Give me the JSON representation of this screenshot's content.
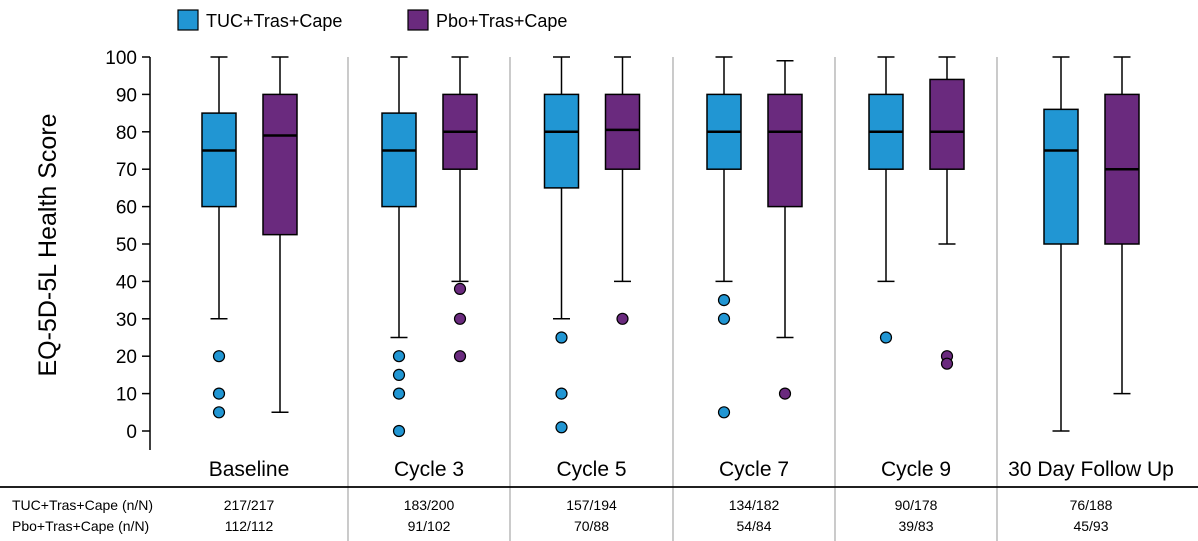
{
  "chart_data": {
    "type": "boxplot",
    "ylabel": "EQ-5D-5L Health Score",
    "ylim": [
      0,
      100
    ],
    "yticks": [
      0,
      10,
      20,
      30,
      40,
      50,
      60,
      70,
      80,
      90,
      100
    ],
    "grid": false,
    "legend_position": "top-left",
    "categories": [
      "Baseline",
      "Cycle 3",
      "Cycle 5",
      "Cycle 7",
      "Cycle 9",
      "30 Day Follow Up"
    ],
    "series": [
      {
        "name": "TUC+Tras+Cape",
        "color": "#2196d3",
        "n_label": "TUC+Tras+Cape (n/N)",
        "counts": [
          "217/217",
          "183/200",
          "157/194",
          "134/182",
          "90/178",
          "76/188"
        ],
        "boxes": [
          {
            "min": 30,
            "q1": 60,
            "median": 75,
            "q3": 85,
            "max": 100,
            "outliers": [
              20,
              10,
              5
            ]
          },
          {
            "min": 25,
            "q1": 60,
            "median": 75,
            "q3": 85,
            "max": 100,
            "outliers": [
              20,
              15,
              10,
              0
            ]
          },
          {
            "min": 30,
            "q1": 65,
            "median": 80,
            "q3": 90,
            "max": 100,
            "outliers": [
              25,
              10,
              1
            ]
          },
          {
            "min": 40,
            "q1": 70,
            "median": 80,
            "q3": 90,
            "max": 100,
            "outliers": [
              35,
              30,
              5
            ]
          },
          {
            "min": 40,
            "q1": 70,
            "median": 80,
            "q3": 90,
            "max": 100,
            "outliers": [
              25
            ]
          },
          {
            "min": 0,
            "q1": 50,
            "median": 75,
            "q3": 86,
            "max": 100,
            "outliers": []
          }
        ]
      },
      {
        "name": "Pbo+Tras+Cape",
        "color": "#6a2a7e",
        "n_label": "Pbo+Tras+Cape (n/N)",
        "counts": [
          "112/112",
          "91/102",
          "70/88",
          "54/84",
          "39/83",
          "45/93"
        ],
        "boxes": [
          {
            "min": 5,
            "q1": 52.5,
            "median": 79,
            "q3": 90,
            "max": 100,
            "outliers": []
          },
          {
            "min": 40,
            "q1": 70,
            "median": 80,
            "q3": 90,
            "max": 100,
            "outliers": [
              38,
              30,
              20
            ]
          },
          {
            "min": 40,
            "q1": 70,
            "median": 80.5,
            "q3": 90,
            "max": 100,
            "outliers": [
              30
            ]
          },
          {
            "min": 25,
            "q1": 60,
            "median": 80,
            "q3": 90,
            "max": 99,
            "outliers": [
              10
            ]
          },
          {
            "min": 50,
            "q1": 70,
            "median": 80,
            "q3": 94,
            "max": 100,
            "outliers": [
              20,
              18
            ]
          },
          {
            "min": 10,
            "q1": 50,
            "median": 70,
            "q3": 90,
            "max": 100,
            "outliers": []
          }
        ]
      }
    ]
  }
}
